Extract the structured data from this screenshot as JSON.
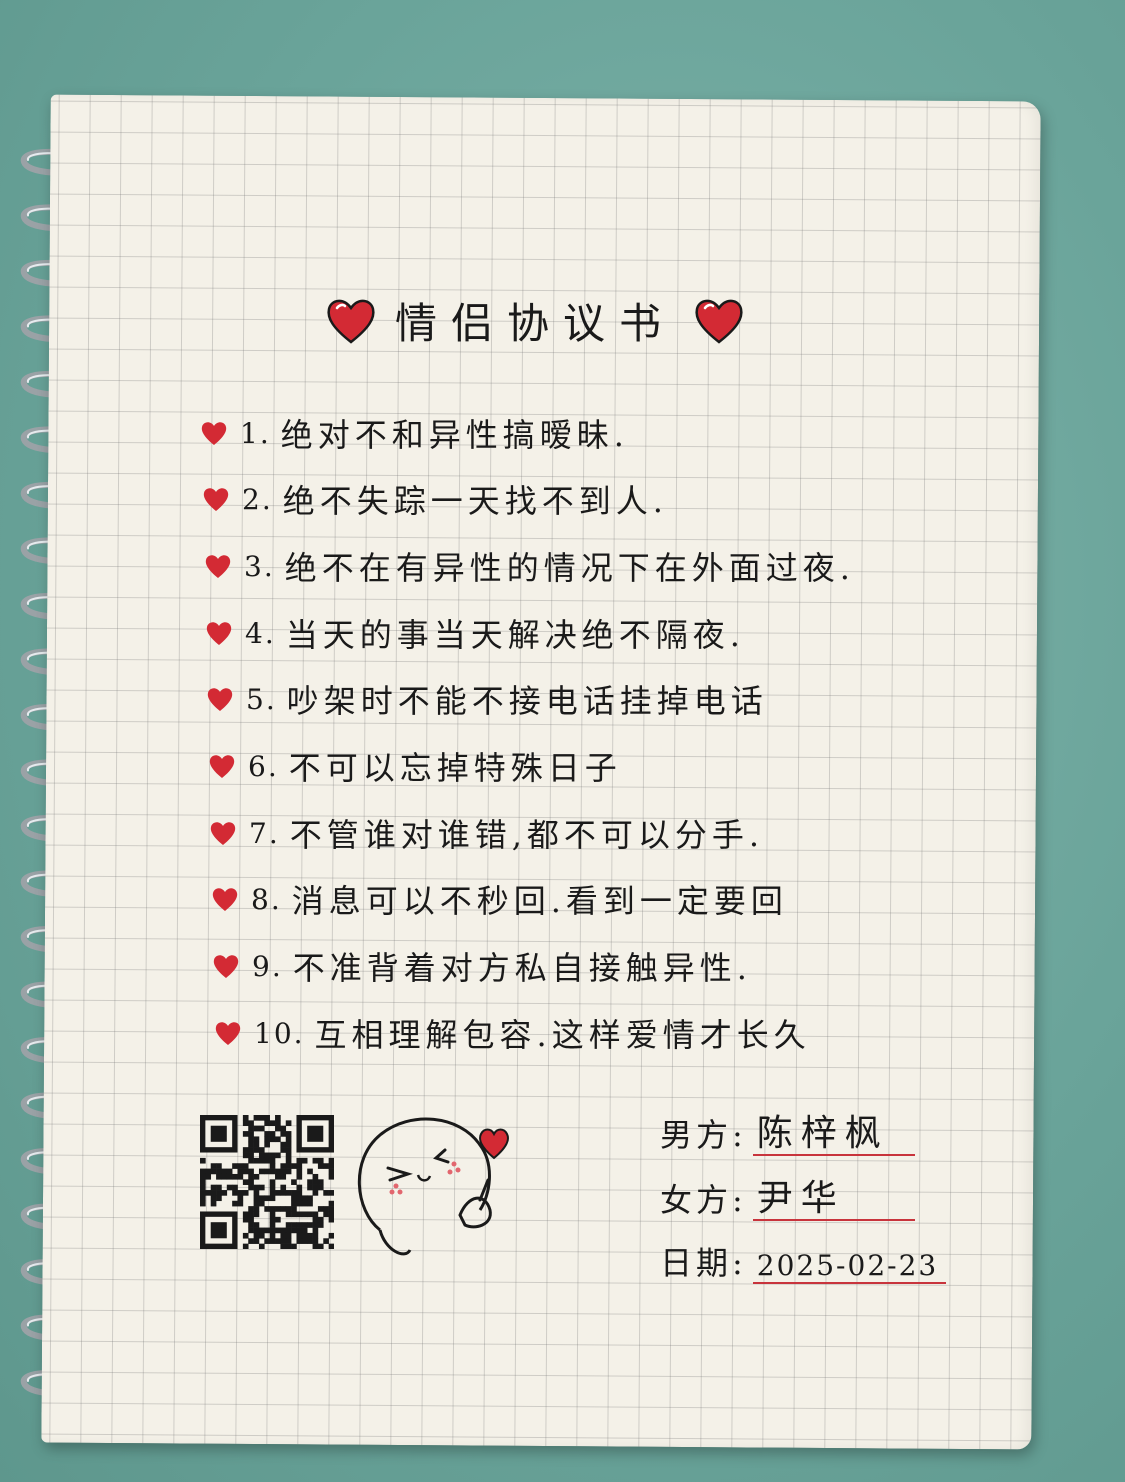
{
  "title": "情侣协议书",
  "rules": [
    {
      "num": "1.",
      "text": "绝对不和异性搞暧昧."
    },
    {
      "num": "2.",
      "text": "绝不失踪一天找不到人."
    },
    {
      "num": "3.",
      "text": "绝不在有异性的情况下在外面过夜."
    },
    {
      "num": "4.",
      "text": "当天的事当天解决绝不隔夜."
    },
    {
      "num": "5.",
      "text": "吵架时不能不接电话挂掉电话"
    },
    {
      "num": "6.",
      "text": "不可以忘掉特殊日子"
    },
    {
      "num": "7.",
      "text": "不管谁对谁错,都不可以分手."
    },
    {
      "num": "8.",
      "text": "消息可以不秒回.看到一定要回"
    },
    {
      "num": "9.",
      "text": "不准背着对方私自接触异性."
    },
    {
      "num": "10.",
      "text": "互相理解包容.这样爱情才长久"
    }
  ],
  "signatures": {
    "male_label": "男方:",
    "male_name": "陈梓枫",
    "female_label": "女方:",
    "female_name": "尹华",
    "date_label": "日期:",
    "date_value": "2025-02-23"
  },
  "colors": {
    "heart": "#d32a34",
    "ink": "#1a1a1a",
    "underline": "#c8343c",
    "background": "#6aa49a",
    "paper": "#f4f1e8"
  }
}
